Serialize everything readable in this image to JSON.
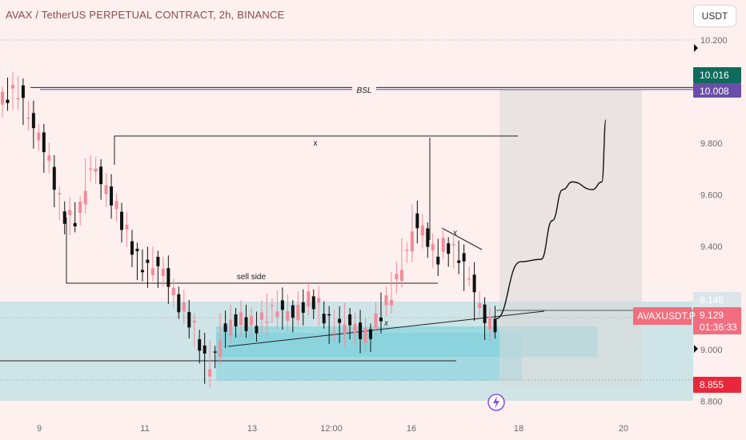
{
  "header": {
    "title": "AVAX / TetherUS PERPETUAL CONTRACT, 2h, BINANCE",
    "currency_button": "USDT"
  },
  "colors": {
    "background": "#fdf0ee",
    "bull": "#f28b9a",
    "bear": "#111111",
    "zone": "#a7dbe0",
    "zone_dark": "#7fd3dc",
    "target_box": "#d9d9d9",
    "current_tag": "#f26d7d",
    "tag_green": "#0f6b5c",
    "tag_purple": "#6a4ea8",
    "tag_red": "#e8273b",
    "event_icon": "#8a4fd8"
  },
  "chart_data": {
    "type": "candlestick",
    "symbol": "AVAXUSDT.P",
    "timeframe": "2h",
    "x_ticks": [
      "9",
      "11",
      "13",
      "12:00",
      "16",
      "18",
      "20"
    ],
    "y_ticks": [
      "10.200",
      "9.800",
      "9.600",
      "9.400",
      "9.000",
      "8.800"
    ],
    "ylim": [
      8.75,
      10.3
    ],
    "grid": false,
    "price_tags": [
      {
        "label": "10.016",
        "value": 10.016,
        "color": "#0f6b5c"
      },
      {
        "label": "10.008",
        "value": 10.008,
        "color": "#6a4ea8"
      },
      {
        "label": "9.145",
        "value": 9.145,
        "color": "#dce6ea"
      },
      {
        "label": "9.129",
        "value": 9.129,
        "color": "#f26d7d"
      },
      {
        "label": "8.855",
        "value": 8.855,
        "color": "#e8273b"
      }
    ],
    "current": {
      "symbol_tag": "AVAXUSDT.P",
      "price": "9.129",
      "countdown": "01:36:33"
    },
    "annotations": {
      "bsl": "BSL",
      "x_top": "x",
      "sell_side": "sell side",
      "x_small_1": "x",
      "x_small_2": "x"
    },
    "levels": {
      "bsl": 10.008,
      "high_line": 10.016,
      "x_top": 9.84,
      "sell_side": 9.25,
      "low_line": 8.955,
      "dotted_high": 10.2,
      "dotted_current": 9.129,
      "dotted_low": 8.855
    },
    "projection_path_prices": [
      9.12,
      9.34,
      9.35,
      9.5,
      9.62,
      9.65,
      9.62,
      9.65,
      9.89
    ]
  }
}
